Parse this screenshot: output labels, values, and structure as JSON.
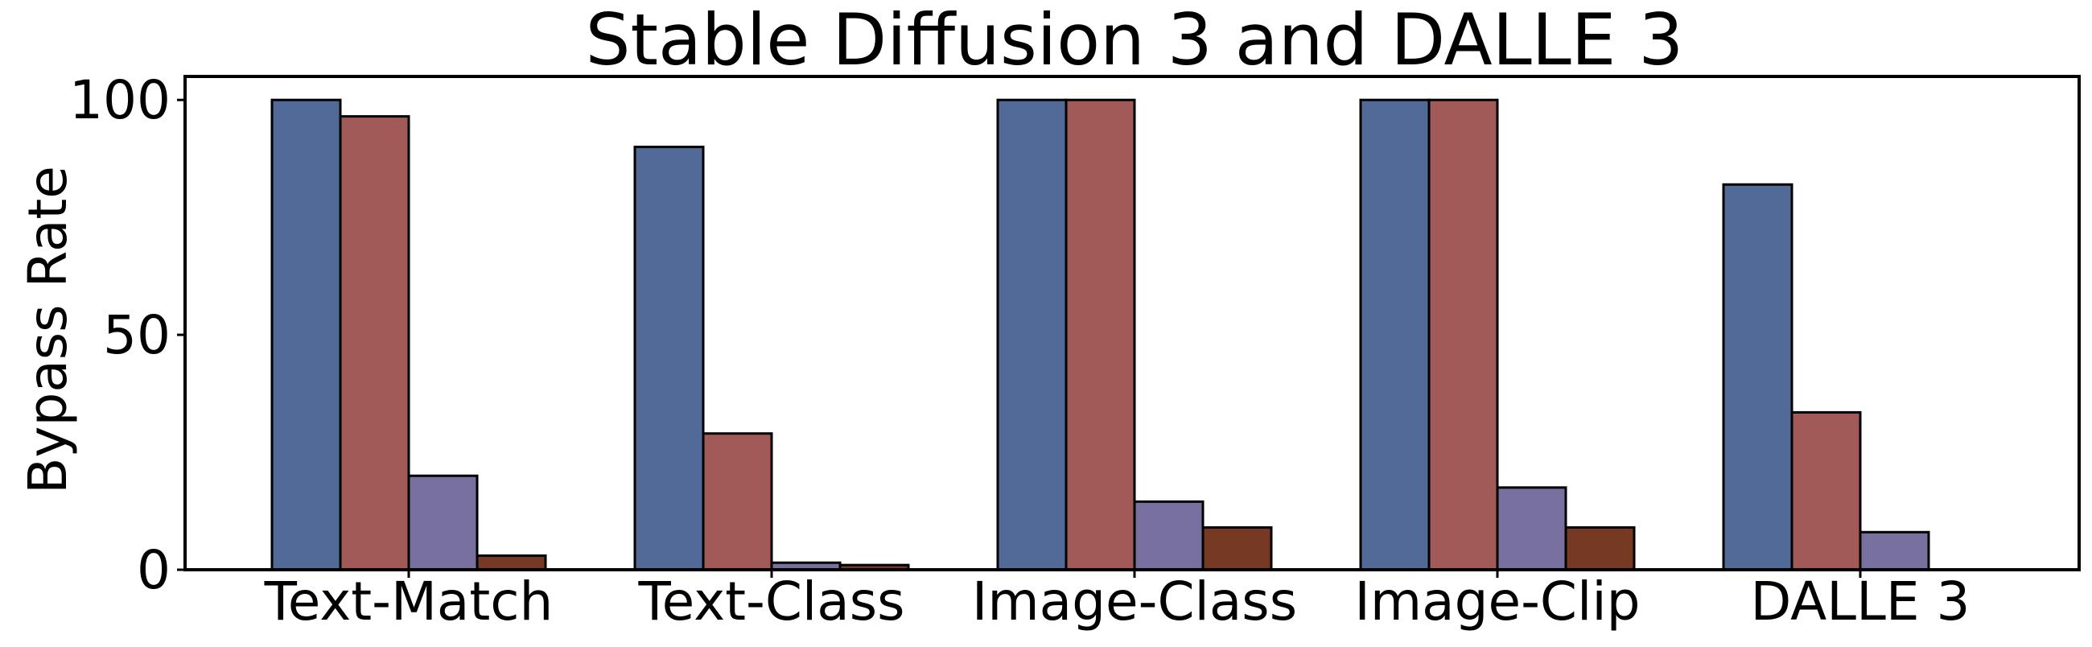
{
  "chart_data": {
    "type": "bar",
    "title": "Stable Diffusion 3 and DALLE 3",
    "xlabel": "",
    "ylabel": "Bypass Rate",
    "categories": [
      "Text-Match",
      "Text-Class",
      "Image-Class",
      "Image-Clip",
      "DALLE 3"
    ],
    "yticks": [
      "0",
      "50",
      "100"
    ],
    "ylim": [
      0,
      105
    ],
    "grid": false,
    "legend": "none",
    "series": [
      {
        "color": "#516a98",
        "values": [
          100,
          90,
          100,
          100,
          82
        ]
      },
      {
        "color": "#a15a58",
        "values": [
          96.5,
          29,
          100,
          100,
          33.5
        ]
      },
      {
        "color": "#78709f",
        "values": [
          20,
          1.5,
          14.5,
          17.5,
          8
        ]
      },
      {
        "color": "#763924",
        "values": [
          3,
          1,
          9,
          9,
          null
        ]
      }
    ]
  }
}
